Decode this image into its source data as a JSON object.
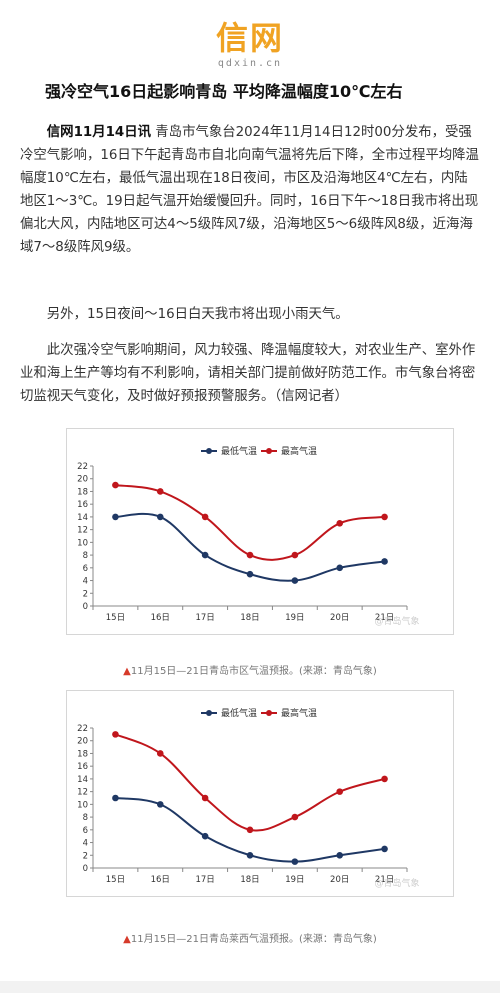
{
  "logo": {
    "main": "信网",
    "sub": "qdxin.cn"
  },
  "article": {
    "title": "强冷空气16日起影响青岛 平均降温幅度10℃左右",
    "p1_lead": "信网11月14日讯",
    "p1_body": " 青岛市气象台2024年11月14日12时00分发布，受强冷空气影响，16日下午起青岛市自北向南气温将先后下降，全市过程平均降温幅度10℃左右，最低气温出现在18日夜间，市区及沿海地区4℃左右，内陆地区1～3℃。19日起气温开始缓慢回升。同时，16日下午～18日我市将出现偏北大风，内陆地区可达4～5级阵风7级，沿海地区5～6级阵风8级，近海海域7～8级阵风9级。",
    "p2": "另外，15日夜间～16日白天我市将出现小雨天气。",
    "p3": "此次强冷空气影响期间，风力较强、降温幅度较大，对农业生产、室外作业和海上生产等均有不利影响，请相关部门提前做好防范工作。市气象台将密切监视天气变化，及时做好预报预警服务。（信网记者）"
  },
  "captions": {
    "chart1_marker": "▲",
    "chart1": "11月15日—21日青岛市区气温预报。(来源：青岛气象)",
    "chart2_marker": "▲",
    "chart2": "11月15日—21日青岛莱西气温预报。(来源：青岛气象)"
  },
  "watermark": "@青岛气象",
  "colors": {
    "low": "#1f3864",
    "high": "#c0161c",
    "logo": "#f0a323"
  },
  "chart_data": [
    {
      "type": "line",
      "categories": [
        "15日",
        "16日",
        "17日",
        "18日",
        "19日",
        "20日",
        "21日"
      ],
      "series": [
        {
          "name": "最低气温",
          "values": [
            14,
            14,
            8,
            5,
            4,
            6,
            7
          ]
        },
        {
          "name": "最高气温",
          "values": [
            19,
            18,
            14,
            8,
            8,
            13,
            14
          ]
        }
      ],
      "ylim": [
        0,
        22
      ],
      "yticks": [
        0,
        2,
        4,
        6,
        8,
        10,
        12,
        14,
        16,
        18,
        20,
        22
      ],
      "grid": false,
      "legend": "top-center"
    },
    {
      "type": "line",
      "categories": [
        "15日",
        "16日",
        "17日",
        "18日",
        "19日",
        "20日",
        "21日"
      ],
      "series": [
        {
          "name": "最低气温",
          "values": [
            11,
            10,
            5,
            2,
            1,
            2,
            3
          ]
        },
        {
          "name": "最高气温",
          "values": [
            21,
            18,
            11,
            6,
            8,
            12,
            14
          ]
        }
      ],
      "ylim": [
        0,
        22
      ],
      "yticks": [
        0,
        2,
        4,
        6,
        8,
        10,
        12,
        14,
        16,
        18,
        20,
        22
      ],
      "grid": false,
      "legend": "top-center"
    }
  ]
}
